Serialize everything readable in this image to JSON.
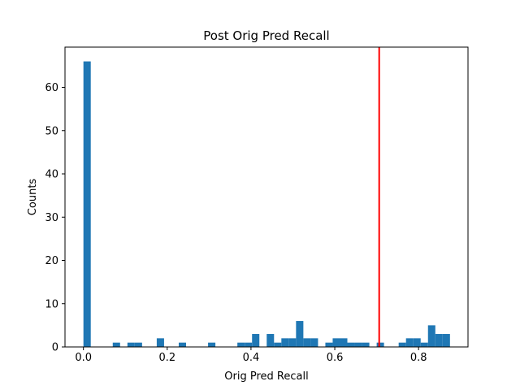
{
  "chart_data": {
    "type": "bar",
    "title": "Post Orig Pred Recall",
    "xlabel": "Orig Pred Recall",
    "ylabel": "Counts",
    "xlim": [
      -0.044,
      0.918
    ],
    "ylim": [
      0,
      69.3
    ],
    "xticks": [
      0.0,
      0.2,
      0.4,
      0.6,
      0.8
    ],
    "xtick_labels": [
      "0.0",
      "0.2",
      "0.4",
      "0.6",
      "0.8"
    ],
    "yticks": [
      0,
      10,
      20,
      30,
      40,
      50,
      60
    ],
    "ytick_labels": [
      "0",
      "10",
      "20",
      "30",
      "40",
      "50",
      "60"
    ],
    "bin_start": 0.0,
    "bin_width": 0.0175,
    "values": [
      66,
      0,
      0,
      0,
      1,
      0,
      1,
      1,
      0,
      0,
      2,
      0,
      0,
      1,
      0,
      0,
      0,
      1,
      0,
      0,
      0,
      1,
      1,
      3,
      0,
      3,
      1,
      2,
      2,
      6,
      2,
      2,
      0,
      1,
      2,
      2,
      1,
      1,
      1,
      0,
      1,
      0,
      0,
      1,
      2,
      2,
      1,
      5,
      3,
      3
    ],
    "bar_color": "#1f77b4",
    "reference_line": {
      "x": 0.706,
      "color": "#ff0000"
    },
    "grid": false,
    "legend": "none"
  }
}
